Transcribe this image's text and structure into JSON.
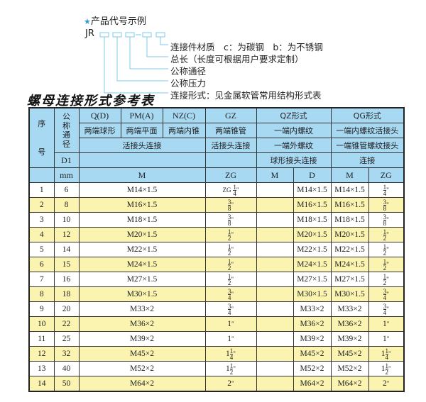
{
  "code_example": {
    "title": "产品代号示例",
    "prefix": "JR",
    "labels": [
      "连接件材质　c：为碳钢　b：为不锈钢",
      "总长（长度可根据用户要求定制）",
      "公称通径",
      "公称压力",
      "连接形式：见金属软管常用结构形式表"
    ]
  },
  "title": "螺母连接形式参考表",
  "header": {
    "seq": "序号",
    "dn": "公称通径",
    "d1": "D1",
    "mm": "mm",
    "q": "Q(D)",
    "pm": "PM(A)",
    "nz": "NZ(C)",
    "gz": "GZ",
    "qz": "QZ形式",
    "qg": "QG形式",
    "q2": "两端球形",
    "pm2": "两端平面",
    "nz2": "两端内锥",
    "gz2": "两端锥管",
    "qz2": "一端内螺纹",
    "qg2": "一端内螺纹活接头",
    "r3a": "活接头连接",
    "gz3": "活接头连接",
    "qz3": "一端外螺纹",
    "qg3": "一端锥管螺纹接头",
    "qz4": "球形接头连接",
    "qg4": "连接",
    "m": "M",
    "zg": "ZG",
    "qzm": "M",
    "qzd": "D",
    "qgm": "M",
    "qgzg": "ZG"
  },
  "rows": [
    {
      "no": "1",
      "dn": "6",
      "m": "M14×1.5",
      "zg": {
        "prefix": "ZG",
        "whole": "",
        "num": "1",
        "den": "4",
        "unit": "\""
      },
      "qzm": "",
      "qzd": "M14×1.5",
      "qgm": "M14×1.5",
      "qgzg": {
        "prefix": "",
        "whole": "",
        "num": "1",
        "den": "4",
        "unit": "\""
      }
    },
    {
      "no": "2",
      "dn": "8",
      "m": "M16×1.5",
      "zg": {
        "prefix": "",
        "whole": "",
        "num": "3",
        "den": "8",
        "unit": "\""
      },
      "qzm": "",
      "qzd": "M16×1.5",
      "qgm": "M16×1.5",
      "qgzg": {
        "prefix": "",
        "whole": "",
        "num": "3",
        "den": "8",
        "unit": "\""
      }
    },
    {
      "no": "3",
      "dn": "10",
      "m": "M18×1.5",
      "zg": {
        "prefix": "",
        "whole": "",
        "num": "3",
        "den": "8",
        "unit": "\""
      },
      "qzm": "",
      "qzd": "M18×1.5",
      "qgm": "M18×1.5",
      "qgzg": {
        "prefix": "",
        "whole": "",
        "num": "3",
        "den": "8",
        "unit": "\""
      }
    },
    {
      "no": "4",
      "dn": "12",
      "m": "M20×1.5",
      "zg": {
        "prefix": "",
        "whole": "",
        "num": "1",
        "den": "2",
        "unit": "\""
      },
      "qzm": "",
      "qzd": "M20×1.5",
      "qgm": "M20×1.5",
      "qgzg": {
        "prefix": "",
        "whole": "",
        "num": "1",
        "den": "2",
        "unit": "\""
      }
    },
    {
      "no": "5",
      "dn": "14",
      "m": "M22×1.5",
      "zg": {
        "prefix": "",
        "whole": "",
        "num": "1",
        "den": "2",
        "unit": "\""
      },
      "qzm": "",
      "qzd": "M22×1.5",
      "qgm": "M22×1.5",
      "qgzg": {
        "prefix": "",
        "whole": "",
        "num": "1",
        "den": "2",
        "unit": "\""
      }
    },
    {
      "no": "6",
      "dn": "15",
      "m": "M24×1.5",
      "zg": {
        "prefix": "",
        "whole": "",
        "num": "1",
        "den": "2",
        "unit": "\""
      },
      "qzm": "",
      "qzd": "M24×1.5",
      "qgm": "M24×1.5",
      "qgzg": {
        "prefix": "",
        "whole": "",
        "num": "1",
        "den": "2",
        "unit": "\""
      }
    },
    {
      "no": "7",
      "dn": "16",
      "m": "M27×1.5",
      "zg": {
        "prefix": "",
        "whole": "",
        "num": "1",
        "den": "2",
        "unit": "\""
      },
      "qzm": "",
      "qzd": "M27×1.5",
      "qgm": "M27×1.5",
      "qgzg": {
        "prefix": "",
        "whole": "",
        "num": "1",
        "den": "2",
        "unit": "\""
      }
    },
    {
      "no": "8",
      "dn": "18",
      "m": "M30×1.5",
      "zg": {
        "prefix": "",
        "whole": "",
        "num": "3",
        "den": "4",
        "unit": "\""
      },
      "qzm": "",
      "qzd": "M30×1.5",
      "qgm": "M30×1.5",
      "qgzg": {
        "prefix": "",
        "whole": "",
        "num": "3",
        "den": "4",
        "unit": "\""
      }
    },
    {
      "no": "9",
      "dn": "20",
      "m": "M33×2",
      "zg": {
        "prefix": "",
        "whole": "",
        "num": "3",
        "den": "4",
        "unit": "\""
      },
      "qzm": "",
      "qzd": "M33×2",
      "qgm": "M33×2",
      "qgzg": {
        "prefix": "",
        "whole": "",
        "num": "3",
        "den": "4",
        "unit": "\""
      }
    },
    {
      "no": "10",
      "dn": "22",
      "m": "M36×2",
      "zg": {
        "prefix": "",
        "whole": "1",
        "num": "",
        "den": "",
        "unit": "\""
      },
      "qzm": "",
      "qzd": "M36×2",
      "qgm": "M36×2",
      "qgzg": {
        "prefix": "",
        "whole": "1",
        "num": "",
        "den": "",
        "unit": "\""
      }
    },
    {
      "no": "11",
      "dn": "25",
      "m": "M39×2",
      "zg": {
        "prefix": "",
        "whole": "1",
        "num": "",
        "den": "",
        "unit": "\""
      },
      "qzm": "",
      "qzd": "M39×2",
      "qgm": "M39×2",
      "qgzg": {
        "prefix": "",
        "whole": "1",
        "num": "",
        "den": "",
        "unit": "\""
      }
    },
    {
      "no": "12",
      "dn": "32",
      "m": "M45×2",
      "zg": {
        "prefix": "",
        "whole": "1",
        "num": "1",
        "den": "4",
        "unit": "\""
      },
      "qzm": "",
      "qzd": "M45×2",
      "qgm": "M45×2",
      "qgzg": {
        "prefix": "",
        "whole": "1",
        "num": "1",
        "den": "4",
        "unit": "\""
      }
    },
    {
      "no": "13",
      "dn": "40",
      "m": "M52×2",
      "zg": {
        "prefix": "",
        "whole": "1",
        "num": "1",
        "den": "2",
        "unit": "\""
      },
      "qzm": "",
      "qzd": "M52×2",
      "qgm": "M52×2",
      "qgzg": {
        "prefix": "",
        "whole": "1",
        "num": "1",
        "den": "2",
        "unit": "\""
      }
    },
    {
      "no": "14",
      "dn": "50",
      "m": "M64×2",
      "zg": {
        "prefix": "",
        "whole": "2",
        "num": "",
        "den": "",
        "unit": "\""
      },
      "qzm": "",
      "qzd": "M64×2",
      "qgm": "M64×2",
      "qgzg": {
        "prefix": "",
        "whole": "2",
        "num": "",
        "den": "",
        "unit": "\""
      }
    }
  ],
  "colors": {
    "header": "#a8d9f3",
    "alt_row": "#fbf4b0",
    "accent": "#2a9fd6"
  }
}
